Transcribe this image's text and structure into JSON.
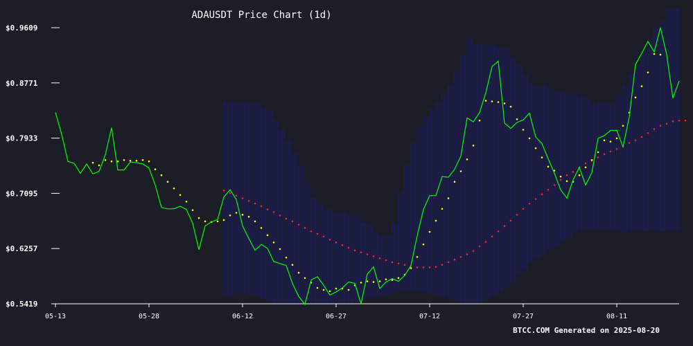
{
  "colors": {
    "background": "#1b1e27",
    "price_line": "#00ff00",
    "ma_short": "#ffff00",
    "ma_long": "#ff2020",
    "bands": "#1a1a8c",
    "axis": "#ffffff"
  },
  "footer": "BTCC.COM Generated on 2025-08-20",
  "chart_data": {
    "type": "line",
    "title": "ADAUSDT Price Chart (1d)",
    "xlabel": "",
    "ylabel": "",
    "x_start": "2025-05-13",
    "x_end": "2025-08-19",
    "x_ticks": [
      "05-13",
      "05-28",
      "06-12",
      "06-27",
      "07-12",
      "07-27",
      "08-11"
    ],
    "x_tick_dates": [
      "2025-05-13",
      "2025-05-28",
      "2025-06-12",
      "2025-06-27",
      "2025-07-12",
      "2025-07-27",
      "2025-08-11"
    ],
    "y_ticks": [
      "$0.5419",
      "$0.6257",
      "$0.7095",
      "$0.7933",
      "$0.8771",
      "$0.9609"
    ],
    "y_tick_values": [
      0.5419,
      0.6257,
      0.7095,
      0.7933,
      0.8771,
      0.9609
    ],
    "ylim": [
      0.5419,
      0.9609
    ],
    "grid": false,
    "series": [
      {
        "role": "price",
        "values": [
          0.832,
          0.799,
          0.758,
          0.755,
          0.74,
          0.754,
          0.739,
          0.743,
          0.768,
          0.809,
          0.745,
          0.745,
          0.757,
          0.756,
          0.754,
          0.748,
          0.722,
          0.688,
          0.686,
          0.686,
          0.69,
          0.685,
          0.664,
          0.624,
          0.66,
          0.666,
          0.67,
          0.704,
          0.715,
          0.7,
          0.66,
          0.641,
          0.623,
          0.632,
          0.626,
          0.606,
          0.603,
          0.6,
          0.573,
          0.553,
          0.541,
          0.578,
          0.583,
          0.57,
          0.555,
          0.56,
          0.566,
          0.575,
          0.573,
          0.542,
          0.587,
          0.598,
          0.565,
          0.575,
          0.58,
          0.576,
          0.585,
          0.6,
          0.645,
          0.685,
          0.706,
          0.706,
          0.735,
          0.734,
          0.746,
          0.766,
          0.824,
          0.818,
          0.832,
          0.862,
          0.902,
          0.91,
          0.816,
          0.808,
          0.817,
          0.821,
          0.831,
          0.795,
          0.785,
          0.762,
          0.74,
          0.715,
          0.702,
          0.73,
          0.749,
          0.722,
          0.741,
          0.793,
          0.797,
          0.805,
          0.805,
          0.78,
          0.825,
          0.905,
          0.922,
          0.94,
          0.924,
          0.961,
          0.92,
          0.854,
          0.88
        ]
      },
      {
        "role": "moving-average-short",
        "start_day": 6,
        "values": [
          0.756,
          0.752,
          0.76,
          0.758,
          0.758,
          0.76,
          0.759,
          0.759,
          0.76,
          0.758,
          0.746,
          0.737,
          0.727,
          0.717,
          0.707,
          0.697,
          0.684,
          0.672,
          0.667,
          0.666,
          0.667,
          0.669,
          0.676,
          0.68,
          0.677,
          0.674,
          0.667,
          0.657,
          0.646,
          0.635,
          0.625,
          0.612,
          0.601,
          0.589,
          0.581,
          0.574,
          0.566,
          0.563,
          0.561,
          0.565,
          0.565,
          0.563,
          0.57,
          0.574,
          0.576,
          0.575,
          0.576,
          0.579,
          0.578,
          0.581,
          0.586,
          0.596,
          0.613,
          0.632,
          0.651,
          0.668,
          0.686,
          0.702,
          0.727,
          0.743,
          0.761,
          0.782,
          0.82,
          0.85,
          0.849,
          0.848,
          0.846,
          0.841,
          0.822,
          0.806,
          0.793,
          0.778,
          0.764,
          0.75,
          0.744,
          0.735,
          0.728,
          0.727,
          0.737,
          0.749,
          0.76,
          0.772,
          0.79,
          0.788,
          0.793,
          0.812,
          0.832,
          0.855,
          0.872,
          0.893,
          0.921,
          0.92
        ]
      },
      {
        "role": "moving-average-long",
        "start_day": 27,
        "values": [
          0.714,
          0.71,
          0.706,
          0.702,
          0.698,
          0.694,
          0.69,
          0.685,
          0.681,
          0.676,
          0.671,
          0.667,
          0.662,
          0.657,
          0.652,
          0.648,
          0.644,
          0.639,
          0.635,
          0.631,
          0.627,
          0.623,
          0.62,
          0.617,
          0.614,
          0.611,
          0.608,
          0.605,
          0.603,
          0.601,
          0.599,
          0.597,
          0.597,
          0.597,
          0.598,
          0.601,
          0.605,
          0.609,
          0.613,
          0.617,
          0.622,
          0.629,
          0.636,
          0.644,
          0.652,
          0.66,
          0.668,
          0.677,
          0.686,
          0.694,
          0.701,
          0.708,
          0.715,
          0.722,
          0.73,
          0.737,
          0.742,
          0.749,
          0.755,
          0.759,
          0.764,
          0.769,
          0.773,
          0.777,
          0.781,
          0.786,
          0.79,
          0.795,
          0.801,
          0.807,
          0.812,
          0.815,
          0.819,
          0.82,
          0.82
        ]
      }
    ],
    "bands": {
      "start_day": 27,
      "upper": [
        0.849,
        0.849,
        0.847,
        0.848,
        0.847,
        0.846,
        0.842,
        0.835,
        0.821,
        0.807,
        0.79,
        0.77,
        0.752,
        0.725,
        0.703,
        0.693,
        0.685,
        0.685,
        0.679,
        0.68,
        0.676,
        0.675,
        0.665,
        0.663,
        0.651,
        0.645,
        0.645,
        0.664,
        0.711,
        0.753,
        0.786,
        0.809,
        0.825,
        0.838,
        0.848,
        0.861,
        0.873,
        0.894,
        0.919,
        0.944,
        0.936,
        0.935,
        0.935,
        0.935,
        0.931,
        0.931,
        0.914,
        0.904,
        0.889,
        0.877,
        0.872,
        0.872,
        0.868,
        0.864,
        0.863,
        0.86,
        0.861,
        0.857,
        0.853,
        0.845,
        0.848,
        0.848,
        0.846,
        0.859,
        0.874,
        0.891,
        0.905,
        0.926,
        0.946,
        0.96,
        0.971,
        0.989,
        0.99,
        0.99,
        0.99
      ],
      "lower": [
        0.555,
        0.554,
        0.558,
        0.557,
        0.556,
        0.553,
        0.55,
        0.546,
        0.543,
        0.54,
        0.536,
        0.533,
        0.531,
        0.528,
        0.527,
        0.529,
        0.53,
        0.533,
        0.537,
        0.54,
        0.542,
        0.545,
        0.548,
        0.551,
        0.552,
        0.553,
        0.555,
        0.558,
        0.56,
        0.562,
        0.562,
        0.561,
        0.559,
        0.557,
        0.554,
        0.551,
        0.549,
        0.546,
        0.542,
        0.538,
        0.541,
        0.545,
        0.55,
        0.555,
        0.56,
        0.566,
        0.575,
        0.586,
        0.594,
        0.605,
        0.612,
        0.618,
        0.625,
        0.63,
        0.637,
        0.642,
        0.649,
        0.652,
        0.654,
        0.656,
        0.654,
        0.654,
        0.653,
        0.652,
        0.65,
        0.652,
        0.653,
        0.652,
        0.652,
        0.652,
        0.652,
        0.652,
        0.652,
        0.652,
        0.652
      ]
    }
  }
}
